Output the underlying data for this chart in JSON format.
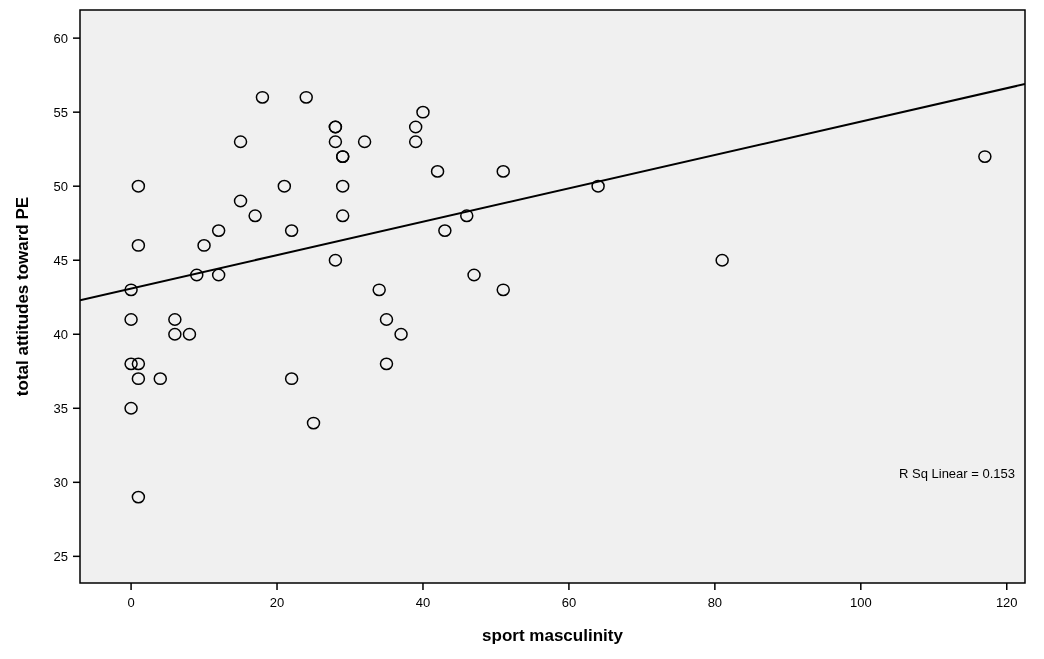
{
  "chart_data": {
    "type": "scatter",
    "xlabel": "sport masculinity",
    "ylabel": "total attitudes toward PE",
    "xlim": [
      -7,
      122.5
    ],
    "ylim": [
      23.2,
      61.9
    ],
    "xticks": [
      0,
      20,
      40,
      60,
      80,
      100,
      120
    ],
    "yticks": [
      25,
      30,
      35,
      40,
      45,
      50,
      55,
      60
    ],
    "grid": false,
    "marker": "circle",
    "annotations": [
      "R Sq Linear = 0.153"
    ],
    "series": [
      {
        "color": "#000000",
        "x": [
          18,
          24,
          40,
          28,
          28,
          39,
          15,
          28,
          32,
          39,
          29,
          29,
          42,
          51,
          1,
          21,
          29,
          15,
          17,
          29,
          46,
          12,
          22,
          43,
          1,
          10,
          28,
          9,
          12,
          47,
          0,
          34,
          51,
          0,
          6,
          35,
          6,
          8,
          37,
          0,
          1,
          35,
          1,
          4,
          22,
          0,
          25,
          1,
          64,
          81,
          117
        ],
        "values": [
          56,
          56,
          55,
          54,
          54,
          54,
          53,
          53,
          53,
          53,
          52,
          52,
          51,
          51,
          50,
          50,
          50,
          49,
          48,
          48,
          48,
          47,
          47,
          47,
          46,
          46,
          45,
          44,
          44,
          44,
          43,
          43,
          43,
          41,
          41,
          41,
          40,
          40,
          40,
          38,
          38,
          38,
          37,
          37,
          37,
          35,
          34,
          29,
          50,
          45,
          52
        ]
      },
      {
        "type": "line",
        "color": "#000000",
        "marker": "none",
        "line_style": "solid",
        "x": [
          -7,
          122.5
        ],
        "values": [
          42.3,
          56.9
        ]
      }
    ]
  }
}
